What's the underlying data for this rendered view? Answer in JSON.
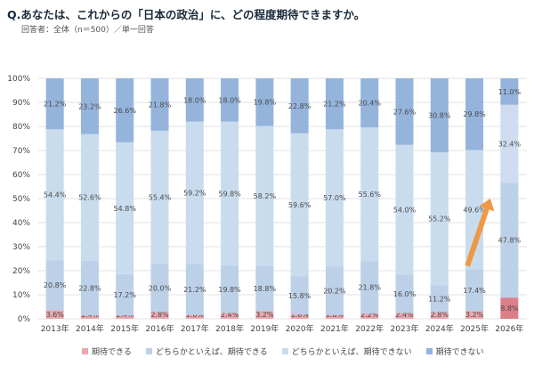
{
  "header": {
    "question": "Q.あなたは、これからの「日本の政治」に、どの程度期待できますか。",
    "respondents": "回答者：全体（n＝500）／単一回答"
  },
  "colors": {
    "expect": "#e9a7ae",
    "somewhat_expect": "#bcd0e8",
    "somewhat_not": "#c8dcee",
    "not_expect": "#94b4dc",
    "highlight_expect": "#dd7f88",
    "highlight_not": "#cfdcf0",
    "arrow": "#ef9845"
  },
  "legend": [
    {
      "label": "期待できる",
      "color": "#e9a7ae"
    },
    {
      "label": "どちらかといえば、期待できる",
      "color": "#bcd0e8"
    },
    {
      "label": "どちらかといえば、期待できない",
      "color": "#c8dcee"
    },
    {
      "label": "期待できない",
      "color": "#94b4dc"
    }
  ],
  "chart_data": {
    "type": "bar",
    "stacked": true,
    "title": "Q.あなたは、これからの「日本の政治」に、どの程度期待できますか。",
    "subtitle": "回答者：全体（n＝500）／単一回答",
    "categories": [
      "2013年",
      "2014年",
      "2015年",
      "2016年",
      "2017年",
      "2018年",
      "2019年",
      "2020年",
      "2021年",
      "2022年",
      "2023年",
      "2024年",
      "2025年",
      "2026年"
    ],
    "y_ticks": [
      "0%",
      "10%",
      "20%",
      "30%",
      "40%",
      "50%",
      "60%",
      "70%",
      "80%",
      "90%",
      "100%"
    ],
    "ylim": [
      0,
      100
    ],
    "grid": true,
    "series": [
      {
        "name": "期待できる",
        "values": [
          3.6,
          1.4,
          1.4,
          2.8,
          1.6,
          2.4,
          3.2,
          1.8,
          1.6,
          2.2,
          2.4,
          2.8,
          3.2,
          8.8
        ]
      },
      {
        "name": "どちらかといえば、期待できる",
        "values": [
          20.8,
          22.8,
          17.2,
          20.0,
          21.2,
          19.8,
          18.8,
          15.8,
          20.2,
          21.8,
          16.0,
          11.2,
          17.4,
          47.8
        ]
      },
      {
        "name": "どちらかといえば、期待できない",
        "values": [
          54.4,
          52.6,
          54.8,
          55.4,
          59.2,
          59.8,
          58.2,
          59.6,
          57.0,
          55.6,
          54.0,
          55.2,
          49.6,
          32.4
        ]
      },
      {
        "name": "期待できない",
        "values": [
          21.2,
          23.2,
          26.6,
          21.8,
          18.0,
          18.0,
          19.8,
          22.8,
          21.2,
          20.4,
          27.6,
          30.8,
          29.8,
          11.0
        ]
      }
    ],
    "labels": [
      [
        "3.6%",
        "1.4%",
        "1.4%",
        "2.8%",
        "1.6%",
        "2.4%",
        "3.2%",
        "1.8%",
        "1.6%",
        "2.2%",
        "2.4%",
        "2.8%",
        "3.2%",
        "8.8%"
      ],
      [
        "20.8%",
        "22.8%",
        "17.2%",
        "20.0%",
        "21.2%",
        "19.8%",
        "18.8%",
        "15.8%",
        "20.2%",
        "21.8%",
        "16.0%",
        "11.2%",
        "17.4%",
        "47.8%"
      ],
      [
        "54.4%",
        "52.6%",
        "54.8%",
        "55.4%",
        "59.2%",
        "59.8%",
        "58.2%",
        "59.6%",
        "57.0%",
        "55.6%",
        "54.0%",
        "55.2%",
        "49.6%",
        "32.4%"
      ],
      [
        "21.2%",
        "23.2%",
        "26.6%",
        "21.8%",
        "18.0%",
        "18.0%",
        "19.8%",
        "22.8%",
        "21.2%",
        "20.4%",
        "27.6%",
        "30.8%",
        "29.8%",
        "11.0%"
      ]
    ],
    "annotation": "upward arrow highlighting 2026年 rise"
  }
}
